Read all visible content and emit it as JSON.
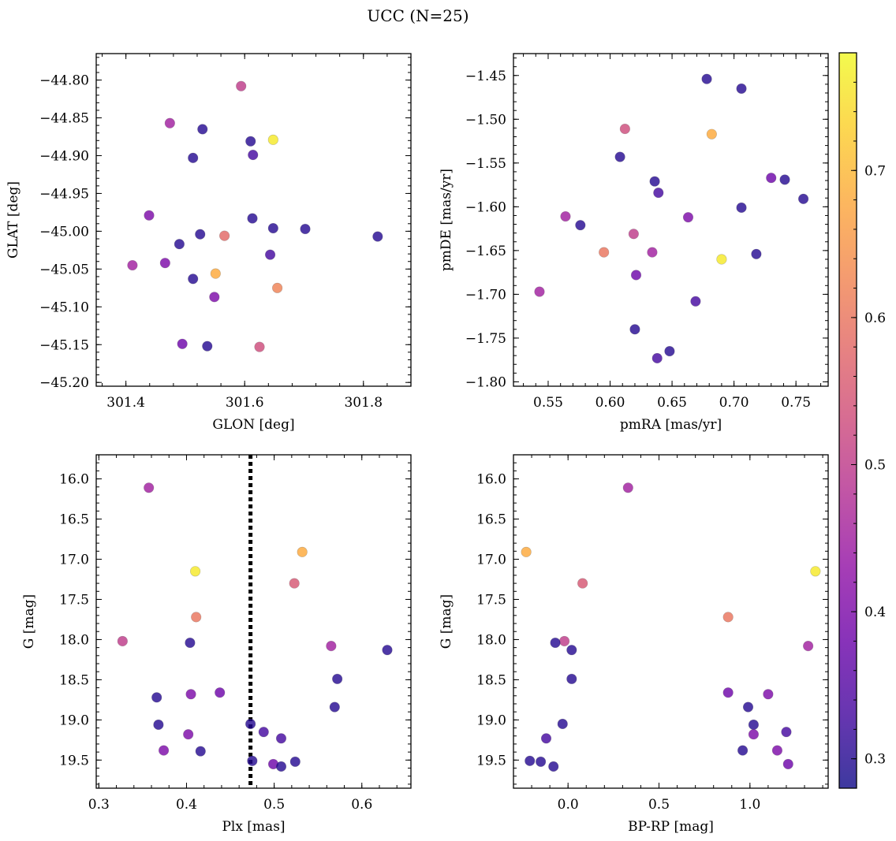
{
  "figure": {
    "title": "UCC (N=25)"
  },
  "colormap": {
    "name": "plasma",
    "range": [
      0.28,
      0.78
    ],
    "ticks": [
      "0.3",
      "0.4",
      "0.5",
      "0.6",
      "0.7"
    ],
    "tick_values": [
      0.3,
      0.4,
      0.5,
      0.6,
      0.7
    ],
    "stops": [
      "#0d0887",
      "#41049d",
      "#6a00a8",
      "#8f0da4",
      "#b12a90",
      "#cc4778",
      "#e16462",
      "#f2844b",
      "#fca636",
      "#fcce25",
      "#f0f921"
    ],
    "alpha": 0.8
  },
  "chart_data": [
    {
      "type": "scatter",
      "title": "",
      "xlabel": "GLON [deg]",
      "ylabel": "GLAT [deg]",
      "xlim": [
        301.35,
        301.88
      ],
      "ylim": [
        -45.205,
        -44.765
      ],
      "xticks": [
        "301.4",
        "301.6",
        "301.8"
      ],
      "xtick_values": [
        301.4,
        301.6,
        301.8
      ],
      "yticks": [
        "−44.80",
        "−44.85",
        "−44.90",
        "−44.95",
        "−45.00",
        "−45.05",
        "−45.10",
        "−45.15",
        "−45.20"
      ],
      "ytick_values": [
        -44.8,
        -44.85,
        -44.9,
        -44.95,
        -45.0,
        -45.05,
        -45.1,
        -45.15,
        -45.2
      ],
      "points": [
        {
          "x": 301.594,
          "y": -44.808,
          "c": 0.5
        },
        {
          "x": 301.474,
          "y": -44.857,
          "c": 0.45
        },
        {
          "x": 301.529,
          "y": -44.865,
          "c": 0.3
        },
        {
          "x": 301.61,
          "y": -44.881,
          "c": 0.3
        },
        {
          "x": 301.648,
          "y": -44.879,
          "c": 0.76
        },
        {
          "x": 301.513,
          "y": -44.903,
          "c": 0.3
        },
        {
          "x": 301.614,
          "y": -44.899,
          "c": 0.33
        },
        {
          "x": 301.439,
          "y": -44.979,
          "c": 0.4
        },
        {
          "x": 301.613,
          "y": -44.983,
          "c": 0.3
        },
        {
          "x": 301.648,
          "y": -44.996,
          "c": 0.3
        },
        {
          "x": 301.702,
          "y": -44.997,
          "c": 0.3
        },
        {
          "x": 301.824,
          "y": -45.007,
          "c": 0.3
        },
        {
          "x": 301.525,
          "y": -45.004,
          "c": 0.3
        },
        {
          "x": 301.566,
          "y": -45.006,
          "c": 0.58
        },
        {
          "x": 301.49,
          "y": -45.017,
          "c": 0.3
        },
        {
          "x": 301.643,
          "y": -45.031,
          "c": 0.33
        },
        {
          "x": 301.411,
          "y": -45.045,
          "c": 0.45
        },
        {
          "x": 301.466,
          "y": -45.042,
          "c": 0.4
        },
        {
          "x": 301.551,
          "y": -45.056,
          "c": 0.68
        },
        {
          "x": 301.513,
          "y": -45.063,
          "c": 0.3
        },
        {
          "x": 301.655,
          "y": -45.075,
          "c": 0.62
        },
        {
          "x": 301.549,
          "y": -45.087,
          "c": 0.4
        },
        {
          "x": 301.495,
          "y": -45.149,
          "c": 0.38
        },
        {
          "x": 301.537,
          "y": -45.152,
          "c": 0.3
        },
        {
          "x": 301.625,
          "y": -45.153,
          "c": 0.53
        }
      ]
    },
    {
      "type": "scatter",
      "title": "",
      "xlabel": "pmRA [mas/yr]",
      "ylabel": "pmDE [mas/yr]",
      "xlim": [
        0.522,
        0.776
      ],
      "ylim": [
        -1.805,
        -1.425
      ],
      "xticks": [
        "0.55",
        "0.60",
        "0.65",
        "0.70",
        "0.75"
      ],
      "xtick_values": [
        0.55,
        0.6,
        0.65,
        0.7,
        0.75
      ],
      "yticks": [
        "−1.45",
        "−1.50",
        "−1.55",
        "−1.60",
        "−1.65",
        "−1.70",
        "−1.75",
        "−1.80"
      ],
      "ytick_values": [
        -1.45,
        -1.5,
        -1.55,
        -1.6,
        -1.65,
        -1.7,
        -1.75,
        -1.8
      ],
      "points": [
        {
          "x": 0.678,
          "y": -1.454,
          "c": 0.3
        },
        {
          "x": 0.706,
          "y": -1.465,
          "c": 0.3
        },
        {
          "x": 0.612,
          "y": -1.511,
          "c": 0.53
        },
        {
          "x": 0.682,
          "y": -1.517,
          "c": 0.68
        },
        {
          "x": 0.608,
          "y": -1.543,
          "c": 0.3
        },
        {
          "x": 0.636,
          "y": -1.571,
          "c": 0.3
        },
        {
          "x": 0.639,
          "y": -1.584,
          "c": 0.33
        },
        {
          "x": 0.73,
          "y": -1.567,
          "c": 0.38
        },
        {
          "x": 0.741,
          "y": -1.569,
          "c": 0.3
        },
        {
          "x": 0.756,
          "y": -1.591,
          "c": 0.3
        },
        {
          "x": 0.706,
          "y": -1.601,
          "c": 0.3
        },
        {
          "x": 0.564,
          "y": -1.611,
          "c": 0.45
        },
        {
          "x": 0.663,
          "y": -1.612,
          "c": 0.4
        },
        {
          "x": 0.576,
          "y": -1.621,
          "c": 0.3
        },
        {
          "x": 0.619,
          "y": -1.631,
          "c": 0.5
        },
        {
          "x": 0.595,
          "y": -1.652,
          "c": 0.6
        },
        {
          "x": 0.634,
          "y": -1.652,
          "c": 0.45
        },
        {
          "x": 0.718,
          "y": -1.654,
          "c": 0.3
        },
        {
          "x": 0.69,
          "y": -1.66,
          "c": 0.76
        },
        {
          "x": 0.621,
          "y": -1.678,
          "c": 0.38
        },
        {
          "x": 0.543,
          "y": -1.697,
          "c": 0.45
        },
        {
          "x": 0.669,
          "y": -1.708,
          "c": 0.33
        },
        {
          "x": 0.62,
          "y": -1.74,
          "c": 0.3
        },
        {
          "x": 0.648,
          "y": -1.765,
          "c": 0.3
        },
        {
          "x": 0.638,
          "y": -1.773,
          "c": 0.33
        }
      ]
    },
    {
      "type": "scatter",
      "title": "",
      "xlabel": "Plx [mas]",
      "ylabel": "G [mag]",
      "xlim": [
        0.297,
        0.656
      ],
      "ylim": [
        19.85,
        15.7
      ],
      "xticks": [
        "0.3",
        "0.4",
        "0.5",
        "0.6"
      ],
      "xtick_values": [
        0.3,
        0.4,
        0.5,
        0.6
      ],
      "yticks": [
        "16.0",
        "16.5",
        "17.0",
        "17.5",
        "18.0",
        "18.5",
        "19.0",
        "19.5"
      ],
      "ytick_values": [
        16.0,
        16.5,
        17.0,
        17.5,
        18.0,
        18.5,
        19.0,
        19.5
      ],
      "vline": {
        "x": 0.473,
        "style": "dotted"
      },
      "points": [
        {
          "x": 0.357,
          "y": 16.11,
          "c": 0.45
        },
        {
          "x": 0.532,
          "y": 16.91,
          "c": 0.68
        },
        {
          "x": 0.41,
          "y": 17.15,
          "c": 0.76
        },
        {
          "x": 0.523,
          "y": 17.3,
          "c": 0.55
        },
        {
          "x": 0.411,
          "y": 17.72,
          "c": 0.6
        },
        {
          "x": 0.327,
          "y": 18.02,
          "c": 0.5
        },
        {
          "x": 0.404,
          "y": 18.04,
          "c": 0.3
        },
        {
          "x": 0.565,
          "y": 18.08,
          "c": 0.45
        },
        {
          "x": 0.629,
          "y": 18.13,
          "c": 0.3
        },
        {
          "x": 0.572,
          "y": 18.49,
          "c": 0.3
        },
        {
          "x": 0.438,
          "y": 18.66,
          "c": 0.38
        },
        {
          "x": 0.405,
          "y": 18.68,
          "c": 0.4
        },
        {
          "x": 0.366,
          "y": 18.72,
          "c": 0.3
        },
        {
          "x": 0.569,
          "y": 18.84,
          "c": 0.3
        },
        {
          "x": 0.368,
          "y": 19.06,
          "c": 0.3
        },
        {
          "x": 0.473,
          "y": 19.05,
          "c": 0.3
        },
        {
          "x": 0.488,
          "y": 19.15,
          "c": 0.33
        },
        {
          "x": 0.402,
          "y": 19.18,
          "c": 0.4
        },
        {
          "x": 0.508,
          "y": 19.23,
          "c": 0.33
        },
        {
          "x": 0.374,
          "y": 19.38,
          "c": 0.4
        },
        {
          "x": 0.416,
          "y": 19.39,
          "c": 0.3
        },
        {
          "x": 0.475,
          "y": 19.51,
          "c": 0.3
        },
        {
          "x": 0.499,
          "y": 19.55,
          "c": 0.38
        },
        {
          "x": 0.524,
          "y": 19.52,
          "c": 0.3
        },
        {
          "x": 0.508,
          "y": 19.58,
          "c": 0.3
        }
      ]
    },
    {
      "type": "scatter",
      "title": "",
      "xlabel": "BP-RP [mag]",
      "ylabel": "G [mag]",
      "xlim": [
        -0.3,
        1.43
      ],
      "ylim": [
        19.85,
        15.7
      ],
      "xticks": [
        "0.0",
        "0.5",
        "1.0"
      ],
      "xtick_values": [
        0.0,
        0.5,
        1.0
      ],
      "yticks": [
        "16.0",
        "16.5",
        "17.0",
        "17.5",
        "18.0",
        "18.5",
        "19.0",
        "19.5"
      ],
      "ytick_values": [
        16.0,
        16.5,
        17.0,
        17.5,
        18.0,
        18.5,
        19.0,
        19.5
      ],
      "points": [
        {
          "x": 0.33,
          "y": 16.11,
          "c": 0.45
        },
        {
          "x": -0.23,
          "y": 16.91,
          "c": 0.68
        },
        {
          "x": 1.36,
          "y": 17.15,
          "c": 0.76
        },
        {
          "x": 0.08,
          "y": 17.3,
          "c": 0.55
        },
        {
          "x": 0.88,
          "y": 17.72,
          "c": 0.6
        },
        {
          "x": -0.02,
          "y": 18.02,
          "c": 0.5
        },
        {
          "x": -0.07,
          "y": 18.04,
          "c": 0.3
        },
        {
          "x": 1.32,
          "y": 18.08,
          "c": 0.45
        },
        {
          "x": 0.02,
          "y": 18.13,
          "c": 0.3
        },
        {
          "x": 0.02,
          "y": 18.49,
          "c": 0.3
        },
        {
          "x": 0.88,
          "y": 18.66,
          "c": 0.38
        },
        {
          "x": 1.1,
          "y": 18.68,
          "c": 0.4
        },
        {
          "x": 0.99,
          "y": 18.84,
          "c": 0.3
        },
        {
          "x": -0.03,
          "y": 19.05,
          "c": 0.3
        },
        {
          "x": 1.02,
          "y": 19.06,
          "c": 0.3
        },
        {
          "x": 1.2,
          "y": 19.15,
          "c": 0.33
        },
        {
          "x": 1.02,
          "y": 19.18,
          "c": 0.4
        },
        {
          "x": -0.12,
          "y": 19.23,
          "c": 0.33
        },
        {
          "x": 0.96,
          "y": 19.38,
          "c": 0.3
        },
        {
          "x": 1.15,
          "y": 19.38,
          "c": 0.4
        },
        {
          "x": -0.21,
          "y": 19.51,
          "c": 0.3
        },
        {
          "x": -0.15,
          "y": 19.52,
          "c": 0.3
        },
        {
          "x": -0.08,
          "y": 19.58,
          "c": 0.3
        },
        {
          "x": 1.21,
          "y": 19.55,
          "c": 0.38
        }
      ]
    }
  ]
}
